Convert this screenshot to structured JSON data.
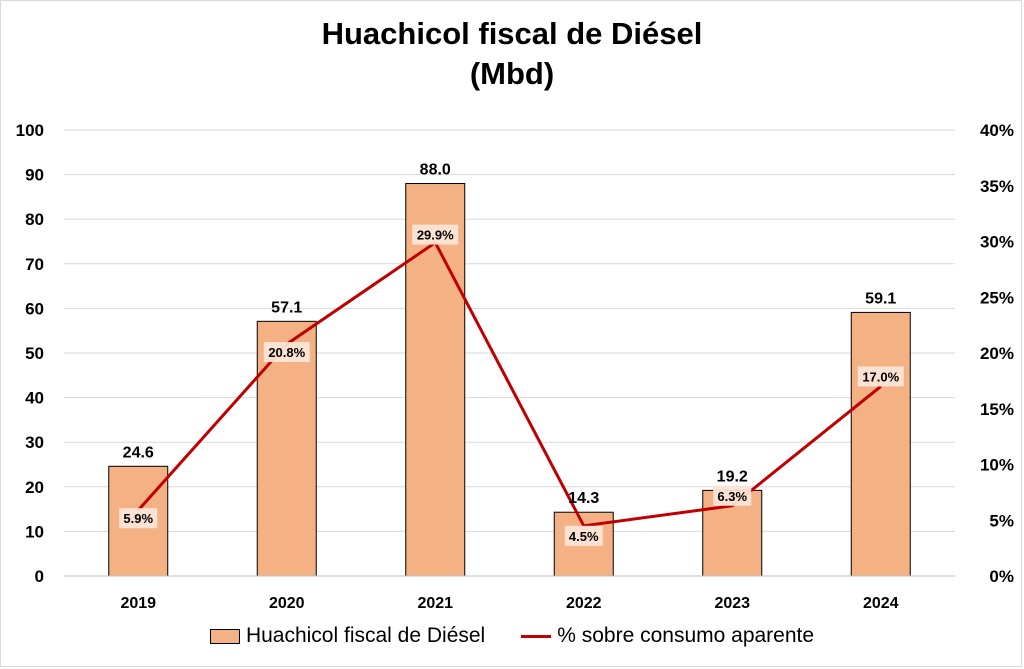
{
  "chart_data": {
    "type": "bar",
    "title": [
      "Huachicol fiscal de Diésel",
      "(Mbd)"
    ],
    "categories": [
      "2019",
      "2020",
      "2021",
      "2022",
      "2023",
      "2024"
    ],
    "series": [
      {
        "name": "Huachicol fiscal de Diésel",
        "type": "bar",
        "axis": "left",
        "color": "#f4b183",
        "values": [
          24.6,
          57.1,
          88.0,
          14.3,
          19.2,
          59.1
        ],
        "labels": [
          "24.6",
          "57.1",
          "88.0",
          "14.3",
          "19.2",
          "59.1"
        ]
      },
      {
        "name": "% sobre consumo aparente",
        "type": "line",
        "axis": "right",
        "color": "#c00000",
        "values": [
          5.9,
          20.8,
          29.9,
          4.5,
          6.3,
          17.0
        ],
        "labels": [
          "5.9%",
          "20.8%",
          "29.9%",
          "4.5%",
          "6.3%",
          "17.0%"
        ]
      }
    ],
    "y_left": {
      "min": 0,
      "max": 100,
      "ticks": [
        "0",
        "10",
        "20",
        "30",
        "40",
        "50",
        "60",
        "70",
        "80",
        "90",
        "100"
      ]
    },
    "y_right": {
      "min": 0,
      "max": 40,
      "ticks": [
        "0%",
        "5%",
        "10%",
        "15%",
        "20%",
        "25%",
        "30%",
        "35%",
        "40%"
      ]
    },
    "grid": true,
    "legend_position": "bottom"
  }
}
